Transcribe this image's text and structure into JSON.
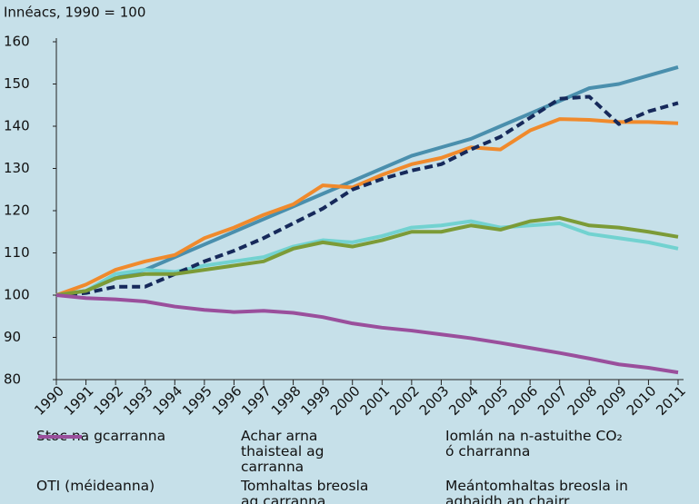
{
  "chart_data": {
    "type": "line",
    "y_label": "Innéacs, 1990 = 100",
    "categories": [
      "1990",
      "1991",
      "1992",
      "1993",
      "1994",
      "1995",
      "1996",
      "1997",
      "1998",
      "1999",
      "2000",
      "2001",
      "2002",
      "2003",
      "2004",
      "2005",
      "2006",
      "2007",
      "2008",
      "2009",
      "2010",
      "2011"
    ],
    "ylim": [
      80,
      160
    ],
    "yticks": [
      80,
      90,
      100,
      110,
      120,
      130,
      140,
      150,
      160
    ],
    "grid": false,
    "series": [
      {
        "name": "Stoc na gcarranna",
        "color": "#4a8fad",
        "dash": false,
        "values": [
          100,
          101,
          104,
          106,
          109,
          112,
          115,
          118,
          121,
          124,
          127,
          130,
          133,
          135,
          137,
          140,
          143,
          146,
          149,
          150,
          152,
          154
        ]
      },
      {
        "name": "Achar arna thaisteal ag carranna",
        "color": "#f08a2c",
        "dash": false,
        "values": [
          100,
          102.5,
          106,
          108,
          109.5,
          113.5,
          116,
          119,
          121.5,
          126,
          125.5,
          128.5,
          131,
          132.5,
          135,
          134.5,
          139,
          141.7,
          141.5,
          141,
          141,
          140.7
        ]
      },
      {
        "name": "Iomlán na n-astuithe CO₂ ó charranna",
        "color": "#72d2d0",
        "dash": false,
        "values": [
          100,
          101,
          105,
          106,
          105.5,
          107,
          108,
          109,
          111.5,
          113,
          112.5,
          114,
          116,
          116.5,
          117.5,
          116,
          116.5,
          117,
          114.5,
          113.5,
          112.5,
          111
        ]
      },
      {
        "name": "OTI (méideanna)",
        "color": "#16295a",
        "dash": true,
        "values": [
          100,
          100.5,
          102,
          102,
          105,
          108,
          110.5,
          113.5,
          117,
          120.5,
          125,
          127.5,
          129.5,
          131,
          134.5,
          137.5,
          142,
          146.5,
          147,
          140.5,
          143.5,
          145.5
        ]
      },
      {
        "name": "Tomhaltas breosla ag carranna",
        "color": "#7c9b37",
        "dash": false,
        "values": [
          100,
          101,
          104,
          105,
          105,
          106,
          107,
          108,
          111,
          112.5,
          111.5,
          113,
          115,
          115,
          116.5,
          115.5,
          117.5,
          118.3,
          116.5,
          116,
          115,
          113.8
        ]
      },
      {
        "name": "Meántomhaltas breosla in aghaidh an chairr",
        "color": "#9a4f9c",
        "dash": false,
        "values": [
          100,
          99.3,
          99,
          98.5,
          97.3,
          96.5,
          96,
          96.3,
          95.8,
          94.8,
          93.3,
          92.3,
          91.6,
          90.7,
          89.8,
          88.7,
          87.5,
          86.3,
          85,
          83.6,
          82.8,
          81.7
        ]
      }
    ]
  }
}
